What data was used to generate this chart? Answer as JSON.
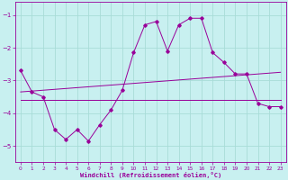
{
  "title": "",
  "xlabel": "Windchill (Refroidissement éolien,°C)",
  "bg_color": "#c8f0f0",
  "grid_color": "#a8dcd8",
  "line_color": "#990099",
  "x_ticks": [
    0,
    1,
    2,
    3,
    4,
    5,
    6,
    7,
    8,
    9,
    10,
    11,
    12,
    13,
    14,
    15,
    16,
    17,
    18,
    19,
    20,
    21,
    22,
    23
  ],
  "y_ticks": [
    -5,
    -4,
    -3,
    -2,
    -1
  ],
  "ylim": [
    -5.5,
    -0.6
  ],
  "xlim": [
    -0.5,
    23.5
  ],
  "main_line_x": [
    0,
    1,
    2,
    3,
    4,
    5,
    6,
    7,
    8,
    9,
    10,
    11,
    12,
    13,
    14,
    15,
    16,
    17,
    18,
    19,
    20,
    21,
    22,
    23
  ],
  "main_line_y": [
    -2.7,
    -3.35,
    -3.5,
    -4.5,
    -4.8,
    -4.5,
    -4.85,
    -4.35,
    -3.9,
    -3.3,
    -2.15,
    -1.3,
    -1.2,
    -2.1,
    -1.3,
    -1.1,
    -1.1,
    -2.15,
    -2.45,
    -2.8,
    -2.8,
    -3.7,
    -3.8,
    -3.8
  ],
  "upper_line_x": [
    0,
    23
  ],
  "upper_line_y": [
    -3.35,
    -2.75
  ],
  "lower_line_x": [
    0,
    23
  ],
  "lower_line_y": [
    -3.6,
    -3.6
  ]
}
